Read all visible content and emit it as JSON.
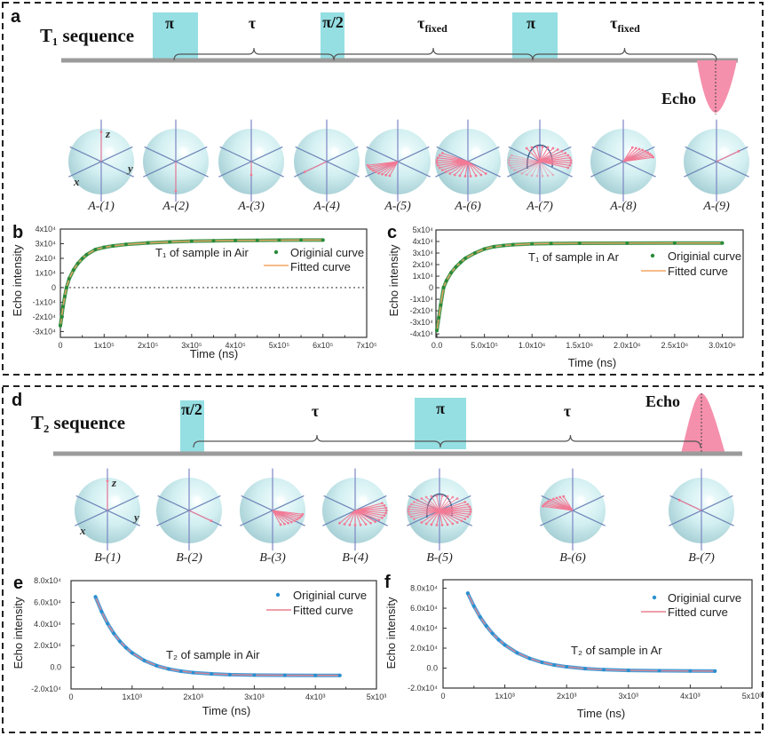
{
  "colors": {
    "pulse": "#95dfe3",
    "echo": "#f590ac",
    "baseline": "#9b9b9b",
    "bracket": "#555555",
    "spin_vector": "#f27a95",
    "axis": "#6f86b8"
  },
  "t1_sequence": {
    "panel_label": "a",
    "title": "T₁ sequence",
    "pulses": [
      {
        "label": "π"
      },
      {
        "label": "π/2"
      },
      {
        "label": "π"
      }
    ],
    "delays": [
      {
        "symbol": "τ",
        "subscript": ""
      },
      {
        "symbol": "τ",
        "subscript": "fixed"
      },
      {
        "symbol": "τ",
        "subscript": "fixed"
      }
    ],
    "echo_label": "Echo",
    "axis_labels": {
      "x": "x",
      "y": "y",
      "z": "z"
    },
    "bloch_spheres": [
      {
        "label": "A-(1)",
        "state": "z-up"
      },
      {
        "label": "A-(2)",
        "state": "z-down"
      },
      {
        "label": "A-(3)",
        "state": "z-down-short"
      },
      {
        "label": "A-(4)",
        "state": "along-x"
      },
      {
        "label": "A-(5)",
        "state": "dephasing-x-small"
      },
      {
        "label": "A-(6)",
        "state": "dephasing-x-wide"
      },
      {
        "label": "A-(7)",
        "state": "refocusing-x"
      },
      {
        "label": "A-(8)",
        "state": "rephasing-negx"
      },
      {
        "label": "A-(9)",
        "state": "along-negx"
      }
    ]
  },
  "t2_sequence": {
    "panel_label": "d",
    "title": "T₂ sequence",
    "pulses": [
      {
        "label": "π/2"
      },
      {
        "label": "π"
      }
    ],
    "delays": [
      {
        "symbol": "τ",
        "subscript": ""
      },
      {
        "symbol": "τ",
        "subscript": ""
      }
    ],
    "echo_label": "Echo",
    "axis_labels": {
      "x": "x",
      "y": "y",
      "z": "z"
    },
    "bloch_spheres": [
      {
        "label": "B-(1)",
        "state": "z-up"
      },
      {
        "label": "B-(2)",
        "state": "along-y"
      },
      {
        "label": "B-(3)",
        "state": "dephasing-y-small"
      },
      {
        "label": "B-(4)",
        "state": "dephasing-y-wide"
      },
      {
        "label": "B-(5)",
        "state": "refocusing-y"
      },
      {
        "label": "B-(6)",
        "state": "rephasing-negy"
      },
      {
        "label": "B-(7)",
        "state": "along-negy"
      }
    ]
  },
  "chart_data": [
    {
      "panel": "b",
      "type": "scatter",
      "title": "T₁ of sample in Air",
      "xlabel": "Time (ns)",
      "ylabel": "Echo intensity",
      "xlim": [
        0,
        700000
      ],
      "ylim": [
        -34000,
        40000
      ],
      "xticks": [
        0,
        100000,
        200000,
        300000,
        400000,
        500000,
        600000,
        700000
      ],
      "xtick_labels": [
        "0",
        "1x10⁵",
        "2x10⁵",
        "3x10⁵",
        "4x10⁵",
        "5x10⁵",
        "6x10⁵",
        "7x10⁵"
      ],
      "yticks": [
        40000,
        30000,
        20000,
        10000,
        0,
        -10000,
        -20000,
        -30000
      ],
      "ytick_labels": [
        "4x10⁴",
        "3x10⁴",
        "2x10⁴",
        "1x10⁴",
        "0",
        "-1x10⁴",
        "-2x10⁴",
        "-3x10⁴"
      ],
      "zero_line": true,
      "grid": false,
      "legend_position": "upper-right",
      "series": [
        {
          "name": "Originial curve",
          "kind": "points",
          "color": "#2a8a3a",
          "x": [
            0,
            3000,
            6000,
            10000,
            14000,
            20000,
            30000,
            40000,
            50000,
            60000,
            80000,
            100000,
            120000,
            150000,
            200000,
            250000,
            300000,
            350000,
            400000,
            450000,
            500000,
            550000,
            600000
          ],
          "y": [
            -26000,
            -20000,
            -13000,
            -6000,
            0,
            6000,
            12000,
            16500,
            19800,
            22500,
            26000,
            27500,
            28500,
            29500,
            30500,
            31200,
            31700,
            32000,
            32200,
            32300,
            32400,
            32500,
            32500
          ]
        },
        {
          "name": "Fitted curve",
          "kind": "line",
          "color": "#f4a561",
          "x": [
            0,
            3000,
            6000,
            10000,
            14000,
            20000,
            30000,
            40000,
            50000,
            60000,
            80000,
            100000,
            120000,
            150000,
            200000,
            250000,
            300000,
            350000,
            400000,
            450000,
            500000,
            550000,
            600000
          ],
          "y": [
            -26000,
            -20000,
            -13000,
            -6000,
            0,
            6000,
            12000,
            16500,
            19800,
            22500,
            26000,
            27500,
            28500,
            29500,
            30500,
            31200,
            31700,
            32000,
            32200,
            32300,
            32400,
            32500,
            32500
          ]
        }
      ]
    },
    {
      "panel": "c",
      "type": "scatter",
      "title": "T₁ of sample in Ar",
      "xlabel": "Time (ns)",
      "ylabel": "Echo intensity",
      "xlim": [
        -10000,
        3220000
      ],
      "ylim": [
        -43000,
        50000
      ],
      "xticks": [
        0,
        500000,
        1000000,
        1500000,
        2000000,
        2500000,
        3000000
      ],
      "xtick_labels": [
        "0.0",
        "5.0x10⁵",
        "1.0x10⁶",
        "1.5x10⁶",
        "2.0x10⁶",
        "2.5x10⁶",
        "3.0x10⁶"
      ],
      "yticks": [
        50000,
        40000,
        30000,
        20000,
        10000,
        0,
        -10000,
        -20000,
        -30000,
        -40000
      ],
      "ytick_labels": [
        "5x10⁴",
        "4x10⁴",
        "3x10⁴",
        "2x10⁴",
        "1x10⁴",
        "0",
        "-1x10⁴",
        "-2x10⁴",
        "-3x10⁴",
        "-4x10⁴"
      ],
      "zero_line": false,
      "grid": false,
      "legend_position": "upper-right",
      "series": [
        {
          "name": "Originial curve",
          "kind": "points",
          "color": "#2a8a3a",
          "x": [
            0,
            20000,
            40000,
            70000,
            100000,
            150000,
            200000,
            250000,
            300000,
            400000,
            500000,
            600000,
            700000,
            800000,
            1000000,
            1200000,
            1500000,
            2000000,
            2500000,
            3000000
          ],
          "y": [
            -37000,
            -26000,
            -15000,
            0,
            6000,
            13000,
            18000,
            22000,
            25500,
            30000,
            33500,
            35500,
            36500,
            37200,
            38000,
            38300,
            38500,
            38600,
            38700,
            38700
          ]
        },
        {
          "name": "Fitted curve",
          "kind": "line",
          "color": "#f4a561",
          "x": [
            0,
            20000,
            40000,
            70000,
            100000,
            150000,
            200000,
            250000,
            300000,
            400000,
            500000,
            600000,
            700000,
            800000,
            1000000,
            1200000,
            1500000,
            2000000,
            2500000,
            3000000
          ],
          "y": [
            -37000,
            -26000,
            -15000,
            0,
            6000,
            13000,
            18000,
            22000,
            25500,
            30000,
            33500,
            35500,
            36500,
            37200,
            38000,
            38300,
            38500,
            38600,
            38700,
            38700
          ]
        }
      ]
    },
    {
      "panel": "e",
      "type": "scatter",
      "title": "T₂ of sample in Air",
      "xlabel": "Time (ns)",
      "ylabel": "Echo intensity",
      "xlim": [
        0,
        5000
      ],
      "ylim": [
        -20000,
        80000
      ],
      "xticks": [
        0,
        1000,
        2000,
        3000,
        4000,
        5000
      ],
      "xtick_labels": [
        "0",
        "1x10³",
        "2x10³",
        "3x10³",
        "4x10³",
        "5x10³"
      ],
      "yticks": [
        80000,
        60000,
        40000,
        20000,
        0,
        -20000
      ],
      "ytick_labels": [
        "8.0x10⁴",
        "6.0x10⁴",
        "4.0x10⁴",
        "2.0x10⁴",
        "0.0",
        "-2.0x10⁴"
      ],
      "zero_line": false,
      "grid": false,
      "legend_position": "upper-right",
      "series": [
        {
          "name": "Originial curve",
          "kind": "points",
          "color": "#2a8fd0",
          "x": [
            400,
            500,
            600,
            700,
            800,
            900,
            1000,
            1200,
            1400,
            1600,
            1800,
            2000,
            2300,
            2600,
            3000,
            3500,
            4000,
            4400
          ],
          "y": [
            65000,
            51400,
            40300,
            31300,
            24000,
            18100,
            13300,
            6200,
            1500,
            -1600,
            -3600,
            -4900,
            -6100,
            -6800,
            -7200,
            -7400,
            -7500,
            -7500
          ]
        },
        {
          "name": "Fitted curve",
          "kind": "line",
          "color": "#e8808e",
          "x": [
            400,
            500,
            600,
            700,
            800,
            900,
            1000,
            1200,
            1400,
            1600,
            1800,
            2000,
            2300,
            2600,
            3000,
            3500,
            4000,
            4400
          ],
          "y": [
            65000,
            51400,
            40300,
            31300,
            24000,
            18100,
            13300,
            6200,
            1500,
            -1600,
            -3600,
            -4900,
            -6100,
            -6800,
            -7200,
            -7400,
            -7500,
            -7500
          ]
        }
      ]
    },
    {
      "panel": "f",
      "type": "scatter",
      "title": "T₂ of sample in Ar",
      "xlabel": "Time (ns)",
      "ylabel": "Echo intensity",
      "xlim": [
        0,
        5000
      ],
      "ylim": [
        -20000,
        88500
      ],
      "xticks": [
        0,
        1000,
        2000,
        3000,
        4000,
        5000
      ],
      "xtick_labels": [
        "0",
        "1x10³",
        "2x10³",
        "3x10³",
        "4x10³",
        "5x10³"
      ],
      "yticks": [
        80000,
        60000,
        40000,
        20000,
        0,
        -20000
      ],
      "ytick_labels": [
        "8.0x10⁴",
        "6.0x10⁴",
        "4.0x10⁴",
        "2.0x10⁴",
        "0.0",
        "-2.0x10⁴"
      ],
      "zero_line": false,
      "grid": false,
      "legend_position": "upper-right",
      "series": [
        {
          "name": "Originial curve",
          "kind": "points",
          "color": "#2a8fd0",
          "x": [
            400,
            500,
            600,
            700,
            800,
            900,
            1000,
            1200,
            1400,
            1600,
            1800,
            2000,
            2300,
            2600,
            3000,
            3500,
            4000,
            4400
          ],
          "y": [
            75000,
            62000,
            51200,
            42200,
            34700,
            28400,
            23200,
            15200,
            9700,
            5800,
            3100,
            1300,
            -500,
            -1600,
            -2300,
            -2700,
            -2900,
            -3000
          ]
        },
        {
          "name": "Fitted curve",
          "kind": "line",
          "color": "#e8808e",
          "x": [
            400,
            500,
            600,
            700,
            800,
            900,
            1000,
            1200,
            1400,
            1600,
            1800,
            2000,
            2300,
            2600,
            3000,
            3500,
            4000,
            4400
          ],
          "y": [
            75000,
            62000,
            51200,
            42200,
            34700,
            28400,
            23200,
            15200,
            9700,
            5800,
            3100,
            1300,
            -500,
            -1600,
            -2300,
            -2700,
            -2900,
            -3000
          ]
        }
      ]
    }
  ]
}
